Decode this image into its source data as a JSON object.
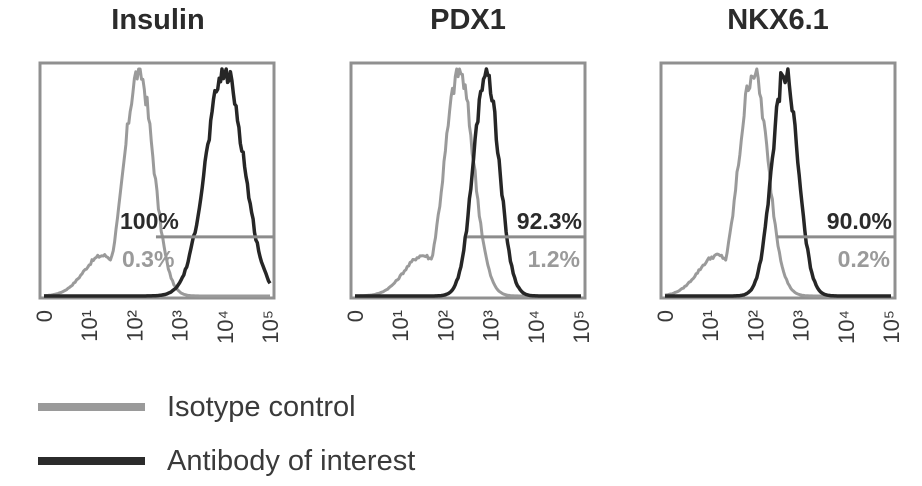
{
  "chart_data": [
    {
      "type": "histogram",
      "title": "Insulin",
      "xscale": "log",
      "xticks": [
        "0",
        "10¹",
        "10²",
        "10³",
        "10⁴",
        "10⁵"
      ],
      "xlim": [
        0,
        100000
      ],
      "gate_start": 300,
      "series": [
        {
          "name": "Isotype control",
          "peak": 125,
          "percent_positive": "0.3%"
        },
        {
          "name": "Antibody of interest",
          "peak": 10000,
          "percent_positive": "100%"
        }
      ]
    },
    {
      "type": "histogram",
      "title": "PDX1",
      "xscale": "log",
      "xticks": [
        "0",
        "10¹",
        "10²",
        "10³",
        "10⁴",
        "10⁵"
      ],
      "xlim": [
        0,
        100000
      ],
      "gate_start": 300,
      "series": [
        {
          "name": "Isotype control",
          "peak": 200,
          "percent_positive": "1.2%"
        },
        {
          "name": "Antibody of interest",
          "peak": 800,
          "percent_positive": "92.3%"
        }
      ]
    },
    {
      "type": "histogram",
      "title": "NKX6.1",
      "xscale": "log",
      "xticks": [
        "0",
        "10¹",
        "10²",
        "10³",
        "10⁴",
        "10⁵"
      ],
      "xlim": [
        0,
        100000
      ],
      "gate_start": 300,
      "series": [
        {
          "name": "Isotype control",
          "peak": 90,
          "percent_positive": "0.2%"
        },
        {
          "name": "Antibody of interest",
          "peak": 450,
          "percent_positive": "90.0%"
        }
      ]
    }
  ],
  "legend": [
    {
      "label": "Isotype control",
      "color": "#9a9a9a"
    },
    {
      "label": "Antibody of interest",
      "color": "#2b2b2b"
    }
  ],
  "colors": {
    "isotype": "#9a9a9a",
    "antibody": "#262626",
    "frame": "#909090",
    "gate": "#8c8c8c"
  }
}
